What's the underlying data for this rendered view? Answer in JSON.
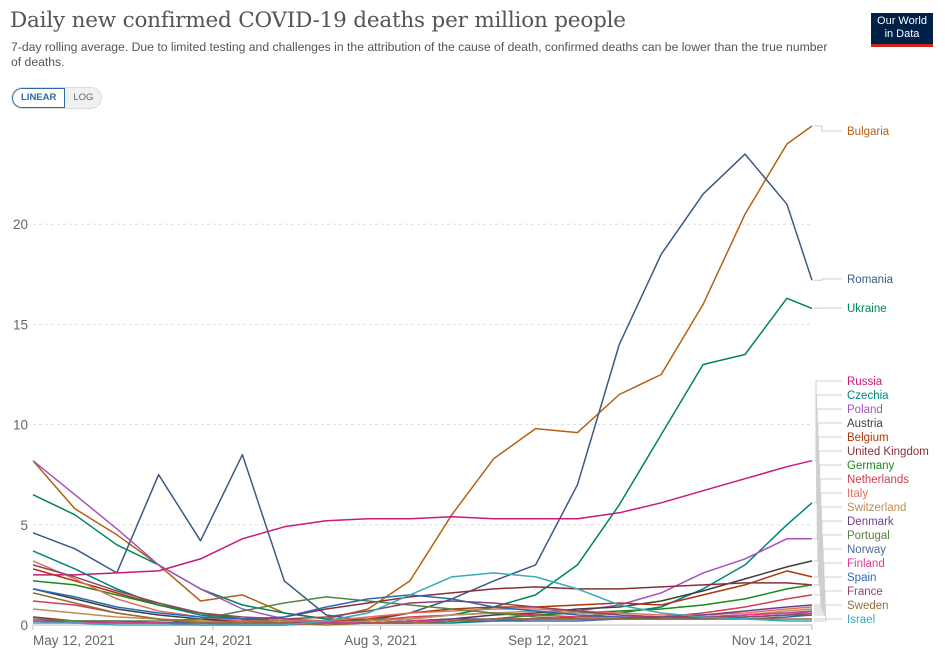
{
  "header": {
    "title": "Daily new confirmed COVID-19 deaths per million people",
    "subtitle": "7-day rolling average. Due to limited testing and challenges in the attribution of the cause of death, confirmed deaths can be lower than the true number of deaths.",
    "logo_line1": "Our World",
    "logo_line2": "in Data"
  },
  "controls": {
    "linear_label": "LINEAR",
    "log_label": "LOG",
    "selected": "LINEAR"
  },
  "chart_data": {
    "type": "line",
    "title": "Daily new confirmed COVID-19 deaths per million people",
    "subtitle": "7-day rolling average",
    "xlabel": "",
    "ylabel": "",
    "x_range": [
      "2021-05-12",
      "2021-11-14"
    ],
    "ylim": [
      0,
      25
    ],
    "y_ticks": [
      0,
      5,
      10,
      15,
      20
    ],
    "x_ticks": [
      "May 12, 2021",
      "Jun 24, 2021",
      "Aug 3, 2021",
      "Sep 12, 2021",
      "Nov 14, 2021"
    ],
    "grid": "horizontal dashed",
    "legend": "right (line labels)",
    "x_sample_dates": [
      "2021-05-12",
      "2021-05-22",
      "2021-06-01",
      "2021-06-11",
      "2021-06-21",
      "2021-07-01",
      "2021-07-11",
      "2021-07-21",
      "2021-07-31",
      "2021-08-10",
      "2021-08-20",
      "2021-08-30",
      "2021-09-09",
      "2021-09-19",
      "2021-09-29",
      "2021-10-09",
      "2021-10-19",
      "2021-10-29",
      "2021-11-08",
      "2021-11-14"
    ],
    "series": [
      {
        "name": "Bulgaria",
        "color": "#b16214",
        "values": [
          8.2,
          5.8,
          4.5,
          3.0,
          1.2,
          1.5,
          0.6,
          0.3,
          0.8,
          2.2,
          5.5,
          8.3,
          9.8,
          9.6,
          11.5,
          12.5,
          16.0,
          20.5,
          24.0,
          24.9
        ]
      },
      {
        "name": "Romania",
        "color": "#3c5a80",
        "values": [
          4.6,
          3.8,
          2.6,
          7.5,
          4.2,
          8.5,
          2.2,
          0.5,
          0.2,
          0.6,
          1.3,
          2.2,
          3.0,
          7.0,
          14.0,
          18.5,
          21.5,
          23.5,
          21.0,
          17.2
        ]
      },
      {
        "name": "Ukraine",
        "color": "#00845a",
        "values": [
          6.5,
          5.5,
          4.0,
          3.0,
          1.8,
          1.0,
          0.6,
          0.3,
          0.2,
          0.3,
          0.5,
          0.9,
          1.5,
          3.0,
          6.0,
          9.5,
          13.0,
          13.5,
          16.3,
          15.8
        ]
      },
      {
        "name": "Russia",
        "color": "#c9197e",
        "values": [
          2.5,
          2.5,
          2.6,
          2.7,
          3.3,
          4.3,
          4.9,
          5.2,
          5.3,
          5.3,
          5.4,
          5.3,
          5.3,
          5.3,
          5.6,
          6.1,
          6.7,
          7.3,
          7.9,
          8.2
        ]
      },
      {
        "name": "Czechia",
        "color": "#00847e",
        "values": [
          3.7,
          2.8,
          1.8,
          1.0,
          0.5,
          0.3,
          0.2,
          0.1,
          0.1,
          0.1,
          0.1,
          0.2,
          0.3,
          0.4,
          0.6,
          0.9,
          1.8,
          3.0,
          5.0,
          6.1
        ]
      },
      {
        "name": "Poland",
        "color": "#a652ba",
        "values": [
          8.2,
          6.5,
          4.8,
          3.0,
          1.8,
          0.8,
          0.3,
          0.2,
          0.1,
          0.1,
          0.2,
          0.3,
          0.5,
          0.7,
          1.0,
          1.6,
          2.6,
          3.3,
          4.3,
          4.3
        ]
      },
      {
        "name": "Austria",
        "color": "#3f3f3f",
        "values": [
          1.8,
          1.3,
          0.8,
          0.5,
          0.3,
          0.2,
          0.1,
          0.1,
          0.1,
          0.2,
          0.3,
          0.5,
          0.6,
          0.8,
          0.9,
          1.2,
          1.7,
          2.3,
          2.9,
          3.2
        ]
      },
      {
        "name": "Belgium",
        "color": "#b13507",
        "values": [
          2.8,
          2.2,
          1.6,
          1.0,
          0.6,
          0.3,
          0.2,
          0.2,
          0.3,
          0.6,
          0.8,
          0.9,
          0.9,
          1.0,
          1.1,
          1.0,
          1.5,
          2.0,
          2.7,
          2.4
        ]
      },
      {
        "name": "United Kingdom",
        "color": "#883039",
        "values": [
          0.4,
          0.2,
          0.2,
          0.1,
          0.2,
          0.2,
          0.4,
          0.8,
          1.1,
          1.4,
          1.6,
          1.8,
          1.9,
          1.8,
          1.8,
          1.9,
          2.0,
          2.1,
          2.1,
          2.0
        ]
      },
      {
        "name": "Germany",
        "color": "#1a8a1a",
        "values": [
          2.2,
          2.0,
          1.5,
          1.0,
          0.6,
          0.3,
          0.2,
          0.1,
          0.1,
          0.1,
          0.2,
          0.3,
          0.5,
          0.6,
          0.7,
          0.8,
          1.0,
          1.3,
          1.8,
          2.0
        ]
      },
      {
        "name": "Netherlands",
        "color": "#d73c50",
        "values": [
          1.2,
          1.0,
          0.6,
          0.3,
          0.1,
          0.1,
          0.1,
          0.1,
          0.2,
          0.4,
          0.5,
          0.6,
          0.5,
          0.4,
          0.4,
          0.4,
          0.6,
          0.9,
          1.3,
          1.5
        ]
      },
      {
        "name": "Italy",
        "color": "#e56e5a",
        "values": [
          3.2,
          2.3,
          1.3,
          0.7,
          0.4,
          0.2,
          0.2,
          0.2,
          0.4,
          0.6,
          0.7,
          0.8,
          0.8,
          0.7,
          0.6,
          0.5,
          0.5,
          0.6,
          0.8,
          0.9
        ]
      },
      {
        "name": "Switzerland",
        "color": "#bc8e5a",
        "values": [
          0.8,
          0.6,
          0.4,
          0.3,
          0.2,
          0.1,
          0.1,
          0.1,
          0.2,
          0.3,
          0.5,
          0.6,
          0.7,
          0.6,
          0.5,
          0.4,
          0.4,
          0.5,
          0.7,
          0.8
        ]
      },
      {
        "name": "Denmark",
        "color": "#6d3e91",
        "values": [
          0.2,
          0.2,
          0.1,
          0.1,
          0.1,
          0.1,
          0.1,
          0.1,
          0.1,
          0.2,
          0.3,
          0.3,
          0.3,
          0.3,
          0.3,
          0.4,
          0.5,
          0.7,
          0.9,
          1.0
        ]
      },
      {
        "name": "Portugal",
        "color": "#578145",
        "values": [
          0.3,
          0.2,
          0.2,
          0.2,
          0.3,
          0.7,
          1.1,
          1.4,
          1.2,
          1.0,
          0.8,
          0.6,
          0.4,
          0.3,
          0.3,
          0.3,
          0.3,
          0.4,
          0.5,
          0.6
        ]
      },
      {
        "name": "Norway",
        "color": "#4c6a9c",
        "values": [
          0.2,
          0.1,
          0.1,
          0.1,
          0.1,
          0.0,
          0.0,
          0.1,
          0.1,
          0.1,
          0.2,
          0.2,
          0.2,
          0.2,
          0.3,
          0.3,
          0.4,
          0.5,
          0.6,
          0.7
        ]
      },
      {
        "name": "Finland",
        "color": "#e63793",
        "values": [
          0.2,
          0.1,
          0.1,
          0.1,
          0.0,
          0.0,
          0.0,
          0.1,
          0.1,
          0.2,
          0.2,
          0.3,
          0.3,
          0.3,
          0.3,
          0.3,
          0.4,
          0.5,
          0.6,
          0.6
        ]
      },
      {
        "name": "Spain",
        "color": "#286bbb",
        "values": [
          1.8,
          1.4,
          0.9,
          0.6,
          0.4,
          0.3,
          0.4,
          0.9,
          1.3,
          1.5,
          1.3,
          0.9,
          0.7,
          0.5,
          0.4,
          0.3,
          0.3,
          0.3,
          0.4,
          0.5
        ]
      },
      {
        "name": "France",
        "color": "#8c4569",
        "values": [
          3.0,
          2.4,
          1.7,
          1.1,
          0.6,
          0.4,
          0.3,
          0.4,
          0.7,
          1.1,
          1.2,
          1.1,
          0.9,
          0.7,
          0.5,
          0.4,
          0.4,
          0.4,
          0.5,
          0.5
        ]
      },
      {
        "name": "Sweden",
        "color": "#996d39",
        "values": [
          1.6,
          1.1,
          0.6,
          0.3,
          0.1,
          0.1,
          0.1,
          0.0,
          0.1,
          0.1,
          0.2,
          0.3,
          0.3,
          0.3,
          0.3,
          0.3,
          0.3,
          0.3,
          0.3,
          0.3
        ]
      },
      {
        "name": "Israel",
        "color": "#38aaba",
        "values": [
          0.1,
          0.1,
          0.0,
          0.0,
          0.0,
          0.0,
          0.0,
          0.2,
          0.6,
          1.5,
          2.4,
          2.6,
          2.4,
          1.8,
          1.0,
          0.6,
          0.4,
          0.3,
          0.2,
          0.2
        ]
      }
    ]
  }
}
